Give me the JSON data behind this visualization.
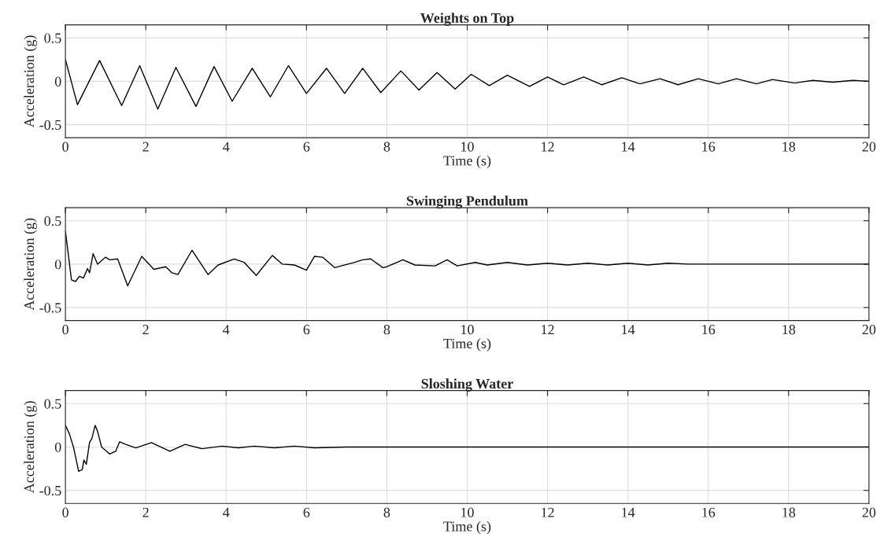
{
  "chart_data": [
    {
      "type": "line",
      "title": "Weights on Top",
      "xlabel": "Time (s)",
      "ylabel": "Acceleration (g)",
      "xlim": [
        0,
        20
      ],
      "ylim": [
        -0.65,
        0.65
      ],
      "xticks": [
        0,
        2,
        4,
        6,
        8,
        10,
        12,
        14,
        16,
        18,
        20
      ],
      "yticks": [
        -0.5,
        0,
        0.5
      ],
      "grid": true,
      "legend": false,
      "series": [
        {
          "color": "#000000",
          "x": [
            0,
            0.3,
            0.85,
            1.4,
            1.85,
            2.3,
            2.75,
            3.25,
            3.7,
            4.15,
            4.65,
            5.1,
            5.55,
            6.0,
            6.5,
            6.95,
            7.4,
            7.85,
            8.35,
            8.8,
            9.25,
            9.7,
            10.1,
            10.55,
            11.0,
            11.55,
            12.0,
            12.4,
            12.9,
            13.35,
            13.85,
            14.3,
            14.8,
            15.25,
            15.75,
            16.25,
            16.7,
            17.2,
            17.6,
            18.15,
            18.6,
            19.1,
            19.6,
            20
          ],
          "values": [
            0.25,
            -0.27,
            0.24,
            -0.28,
            0.18,
            -0.32,
            0.16,
            -0.29,
            0.17,
            -0.23,
            0.15,
            -0.18,
            0.18,
            -0.14,
            0.15,
            -0.14,
            0.15,
            -0.13,
            0.12,
            -0.1,
            0.1,
            -0.09,
            0.08,
            -0.05,
            0.07,
            -0.06,
            0.05,
            -0.04,
            0.05,
            -0.04,
            0.04,
            -0.03,
            0.03,
            -0.04,
            0.03,
            -0.03,
            0.03,
            -0.03,
            0.02,
            -0.02,
            0.01,
            -0.01,
            0.01,
            0
          ]
        }
      ]
    },
    {
      "type": "line",
      "title": "Swinging Pendulum",
      "xlabel": "Time (s)",
      "ylabel": "Acceleration (g)",
      "xlim": [
        0,
        20
      ],
      "ylim": [
        -0.65,
        0.65
      ],
      "xticks": [
        0,
        2,
        4,
        6,
        8,
        10,
        12,
        14,
        16,
        18,
        20
      ],
      "yticks": [
        -0.5,
        0,
        0.5
      ],
      "grid": true,
      "legend": false,
      "series": [
        {
          "color": "#000000",
          "x": [
            0,
            0.15,
            0.25,
            0.35,
            0.45,
            0.55,
            0.6,
            0.69,
            0.8,
            1.0,
            1.1,
            1.3,
            1.55,
            1.9,
            2.2,
            2.5,
            2.65,
            2.8,
            3.15,
            3.55,
            3.8,
            4.2,
            4.45,
            4.75,
            5.15,
            5.4,
            5.7,
            6.0,
            6.2,
            6.4,
            6.7,
            7.2,
            7.4,
            7.6,
            7.9,
            8.0,
            8.4,
            8.7,
            9.2,
            9.5,
            9.75,
            10.2,
            10.5,
            11.0,
            11.5,
            12.0,
            12.5,
            13.0,
            13.5,
            14.0,
            14.5,
            15.0,
            15.5,
            20
          ],
          "values": [
            0.38,
            -0.18,
            -0.2,
            -0.14,
            -0.16,
            -0.05,
            -0.1,
            0.12,
            0.0,
            0.08,
            0.05,
            0.06,
            -0.25,
            0.09,
            -0.06,
            -0.03,
            -0.1,
            -0.12,
            0.16,
            -0.12,
            -0.01,
            0.06,
            0.02,
            -0.13,
            0.1,
            0.0,
            -0.01,
            -0.07,
            0.09,
            0.08,
            -0.04,
            0.02,
            0.05,
            0.06,
            -0.04,
            -0.03,
            0.05,
            -0.01,
            -0.02,
            0.05,
            -0.02,
            0.02,
            -0.01,
            0.02,
            -0.01,
            0.01,
            -0.01,
            0.01,
            -0.01,
            0.01,
            -0.01,
            0.01,
            0,
            0
          ]
        }
      ]
    },
    {
      "type": "line",
      "title": "Sloshing Water",
      "xlabel": "Time (s)",
      "ylabel": "Acceleration (g)",
      "xlim": [
        0,
        20
      ],
      "ylim": [
        -0.65,
        0.65
      ],
      "xticks": [
        0,
        2,
        4,
        6,
        8,
        10,
        12,
        14,
        16,
        18,
        20
      ],
      "yticks": [
        -0.5,
        0,
        0.5
      ],
      "grid": true,
      "legend": false,
      "series": [
        {
          "color": "#000000",
          "x": [
            0,
            0.1,
            0.2,
            0.33,
            0.42,
            0.46,
            0.52,
            0.6,
            0.66,
            0.74,
            0.8,
            0.9,
            1.1,
            1.25,
            1.35,
            1.5,
            1.75,
            2.14,
            2.6,
            2.98,
            3.4,
            3.9,
            4.3,
            4.7,
            5.2,
            5.7,
            6.2,
            7.0,
            13.0,
            20
          ],
          "values": [
            0.25,
            0.15,
            0.0,
            -0.28,
            -0.26,
            -0.15,
            -0.2,
            0.05,
            0.1,
            0.25,
            0.18,
            0.0,
            -0.08,
            -0.05,
            0.06,
            0.03,
            -0.01,
            0.05,
            -0.05,
            0.03,
            -0.02,
            0.01,
            -0.01,
            0.01,
            -0.01,
            0.01,
            -0.01,
            0,
            0,
            0
          ]
        }
      ]
    }
  ]
}
